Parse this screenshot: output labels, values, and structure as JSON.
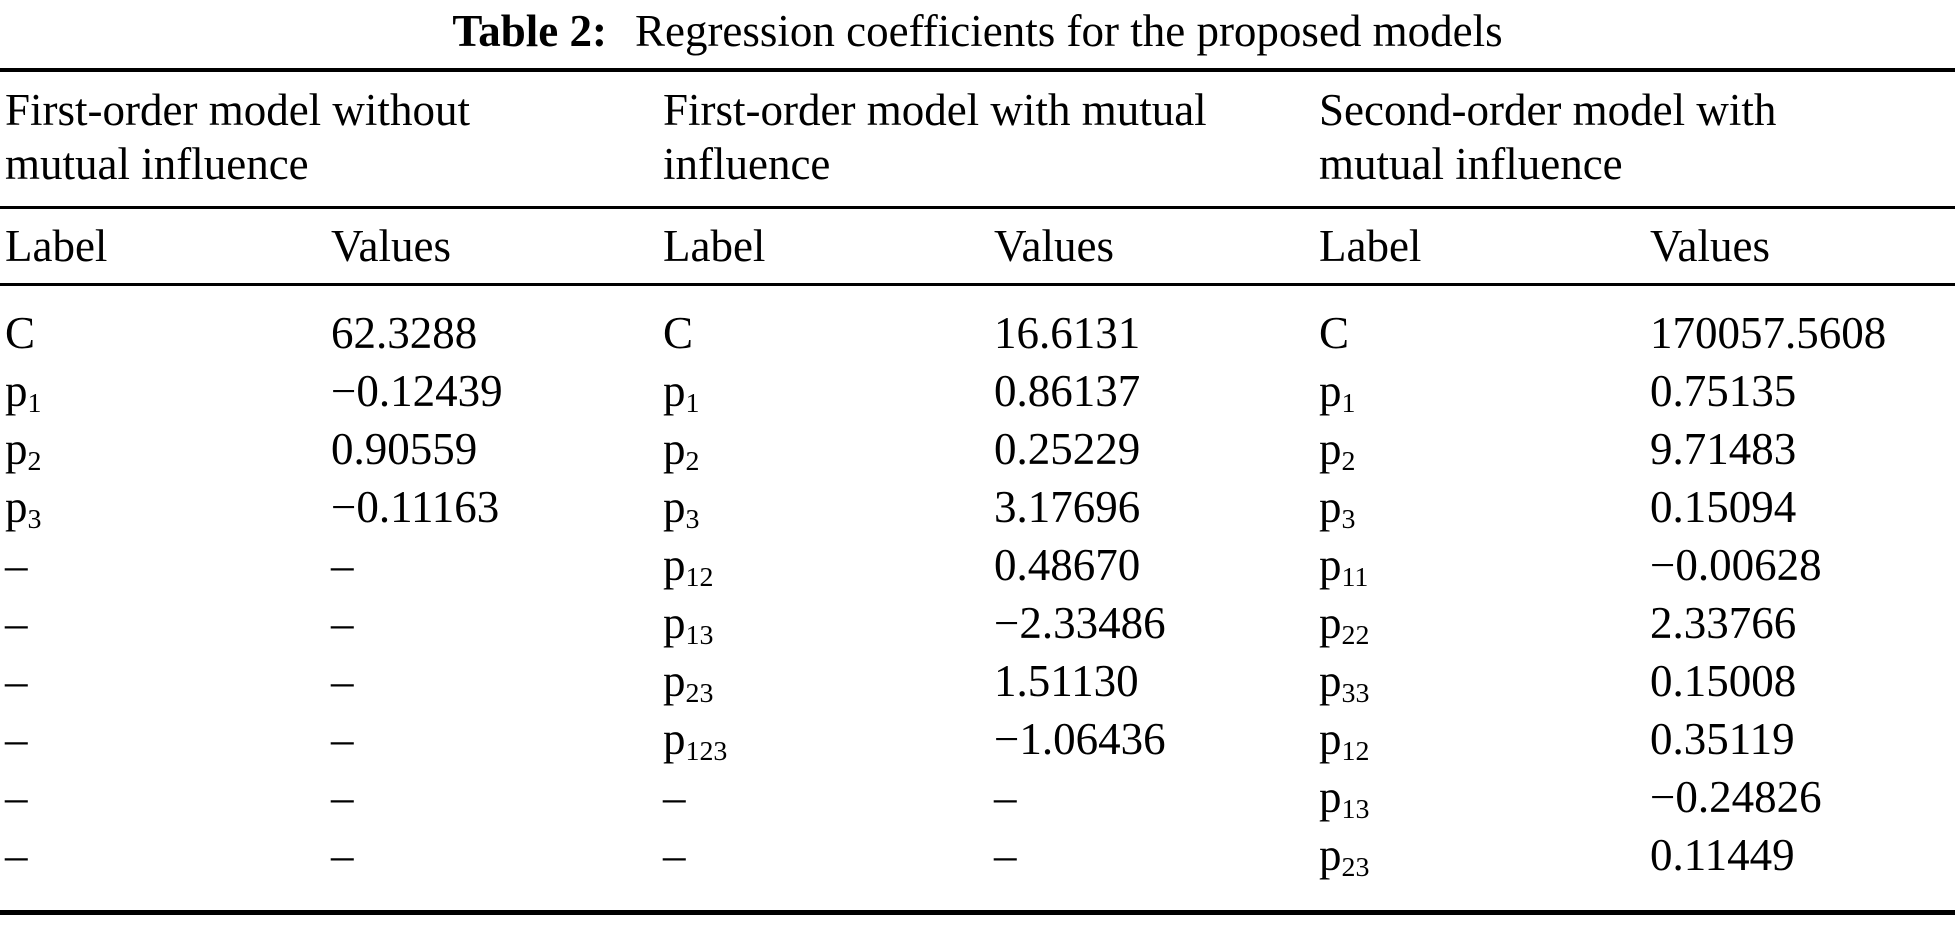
{
  "table_caption": {
    "label": "Table 2:",
    "text": "Regression coefficients for the proposed models"
  },
  "sections": [
    {
      "header_lines": [
        "First-order model without",
        "mutual influence"
      ],
      "columns": {
        "label": "Label",
        "values": "Values"
      },
      "rows": [
        {
          "base": "C",
          "sub": "",
          "value": "62.3288"
        },
        {
          "base": "p",
          "sub": "1",
          "value": "−0.12439"
        },
        {
          "base": "p",
          "sub": "2",
          "value": "0.90559"
        },
        {
          "base": "p",
          "sub": "3",
          "value": "−0.11163"
        },
        {
          "base": "–",
          "sub": "",
          "value": "–"
        },
        {
          "base": "–",
          "sub": "",
          "value": "–"
        },
        {
          "base": "–",
          "sub": "",
          "value": "–"
        },
        {
          "base": "–",
          "sub": "",
          "value": "–"
        },
        {
          "base": "–",
          "sub": "",
          "value": "–"
        },
        {
          "base": "–",
          "sub": "",
          "value": "–"
        }
      ]
    },
    {
      "header_lines": [
        "First-order model with mutual",
        "influence"
      ],
      "columns": {
        "label": "Label",
        "values": "Values"
      },
      "rows": [
        {
          "base": "C",
          "sub": "",
          "value": "16.6131"
        },
        {
          "base": "p",
          "sub": "1",
          "value": "0.86137"
        },
        {
          "base": "p",
          "sub": "2",
          "value": "0.25229"
        },
        {
          "base": "p",
          "sub": "3",
          "value": "3.17696"
        },
        {
          "base": "p",
          "sub": "12",
          "value": "0.48670"
        },
        {
          "base": "p",
          "sub": "13",
          "value": "−2.33486"
        },
        {
          "base": "p",
          "sub": "23",
          "value": "1.51130"
        },
        {
          "base": "p",
          "sub": "123",
          "value": "−1.06436"
        },
        {
          "base": "–",
          "sub": "",
          "value": "–"
        },
        {
          "base": "–",
          "sub": "",
          "value": "–"
        }
      ]
    },
    {
      "header_lines": [
        "Second-order model with",
        "mutual influence"
      ],
      "columns": {
        "label": "Label",
        "values": "Values"
      },
      "rows": [
        {
          "base": "C",
          "sub": "",
          "value": "170057.5608"
        },
        {
          "base": "p",
          "sub": "1",
          "value": "0.75135"
        },
        {
          "base": "p",
          "sub": "2",
          "value": "9.71483"
        },
        {
          "base": "p",
          "sub": "3",
          "value": "0.15094"
        },
        {
          "base": "p",
          "sub": "11",
          "value": "−0.00628"
        },
        {
          "base": "p",
          "sub": "22",
          "value": "2.33766"
        },
        {
          "base": "p",
          "sub": "33",
          "value": "0.15008"
        },
        {
          "base": "p",
          "sub": "12",
          "value": "0.35119"
        },
        {
          "base": "p",
          "sub": "13",
          "value": "−0.24826"
        },
        {
          "base": "p",
          "sub": "23",
          "value": "0.11449"
        }
      ]
    }
  ]
}
